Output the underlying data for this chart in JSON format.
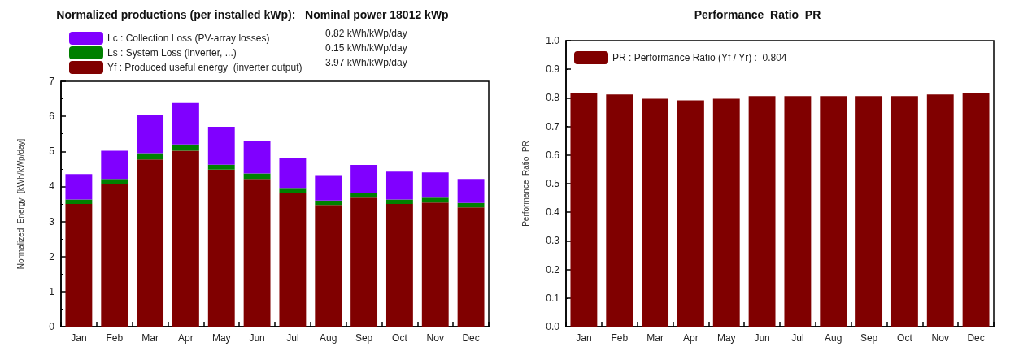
{
  "chart_data": [
    {
      "type": "bar",
      "title": "Normalized productions (per installed kWp):   Nominal power 18012 kWp",
      "ylabel": "Normalized  Energy  [kWh/kWp/day]",
      "categories": [
        "Jan",
        "Feb",
        "Mar",
        "Apr",
        "May",
        "Jun",
        "Jul",
        "Aug",
        "Sep",
        "Oct",
        "Nov",
        "Dec"
      ],
      "stacked": true,
      "series": [
        {
          "name": "Yf : Produced useful energy  (inverter output)",
          "color": "#800000",
          "values": [
            3.5,
            4.07,
            4.77,
            5.02,
            4.48,
            4.21,
            3.82,
            3.47,
            3.68,
            3.5,
            3.54,
            3.4
          ]
        },
        {
          "name": "Ls : System Loss (inverter, ...)",
          "color": "#008000",
          "values": [
            0.13,
            0.14,
            0.18,
            0.18,
            0.14,
            0.16,
            0.14,
            0.13,
            0.14,
            0.13,
            0.14,
            0.13
          ]
        },
        {
          "name": "Lc : Collection Loss (PV-array losses)",
          "color": "#8000ff",
          "values": [
            0.72,
            0.81,
            1.1,
            1.18,
            1.08,
            0.94,
            0.85,
            0.72,
            0.79,
            0.79,
            0.72,
            0.68
          ]
        }
      ],
      "annotations": [
        "0.82 kWh/kWp/day",
        "0.15 kWh/kWp/day",
        "3.97 kWh/kWp/day"
      ],
      "ylim": [
        0,
        7
      ],
      "yticks": [
        0,
        1,
        2,
        3,
        4,
        5,
        6,
        7
      ],
      "grid": false,
      "legend": "top left"
    },
    {
      "type": "bar",
      "title": "Performance  Ratio  PR",
      "ylabel": "Performance  Ratio  PR",
      "categories": [
        "Jan",
        "Feb",
        "Mar",
        "Apr",
        "May",
        "Jun",
        "Jul",
        "Aug",
        "Sep",
        "Oct",
        "Nov",
        "Dec"
      ],
      "series": [
        {
          "name": "PR : Performance Ratio (Yf / Yr) :  0.804",
          "color": "#800000",
          "values": [
            0.818,
            0.812,
            0.797,
            0.791,
            0.797,
            0.806,
            0.806,
            0.806,
            0.806,
            0.806,
            0.812,
            0.818
          ]
        }
      ],
      "ylim": [
        0,
        1
      ],
      "yticks": [
        {
          "value": 0,
          "label": "0.0"
        },
        0.1,
        0.2,
        0.3,
        0.4,
        0.5,
        0.6,
        0.7,
        0.8,
        0.9,
        {
          "value": 1,
          "label": "1.0"
        }
      ],
      "grid": false,
      "legend": "top left"
    }
  ]
}
